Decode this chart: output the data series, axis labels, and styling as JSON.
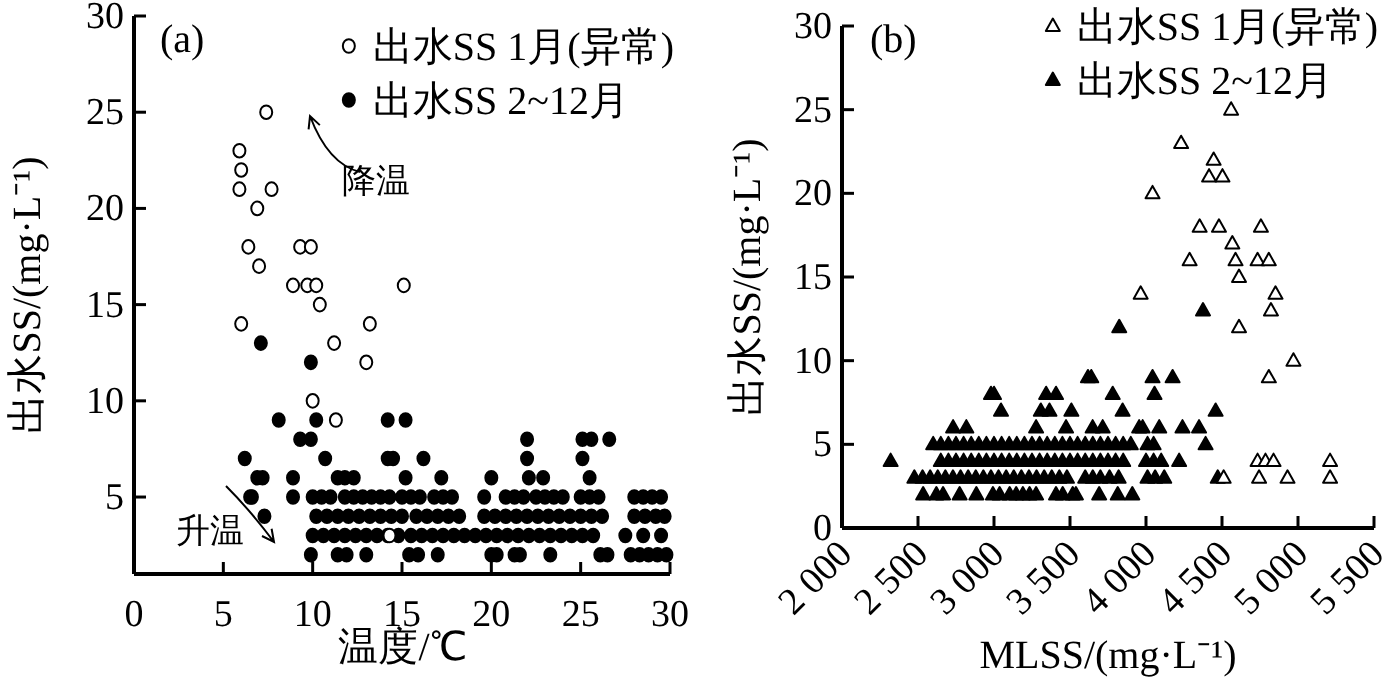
{
  "chart_data": [
    {
      "type": "scatter",
      "xlabel": "温度/℃",
      "ylabel": "出水SS/(mg·L⁻¹)",
      "xlim": [
        0,
        30
      ],
      "ylim": [
        1,
        30
      ],
      "xticks": [
        0,
        5,
        10,
        15,
        20,
        25,
        30
      ],
      "yticks": [
        5,
        10,
        15,
        20,
        25,
        30
      ],
      "legend": "top right",
      "annotations": [
        "(a)",
        "降温",
        "升温"
      ],
      "series": [
        {
          "name": "出水SS 1月(异常)",
          "color": "#ffffff",
          "marker": "circle",
          "x": [
            7.4,
            5.9,
            6.0,
            5.9,
            7.7,
            6.9,
            6.4,
            9.3,
            9.9,
            7.0,
            8.9,
            9.7,
            10.2,
            15.1,
            10.4,
            6.0,
            13.2,
            11.2,
            13.0,
            10.0,
            11.3,
            14.3
          ],
          "values": [
            25,
            23,
            22,
            21,
            21,
            20,
            18,
            18,
            18,
            17,
            16,
            16,
            16,
            16,
            15,
            14,
            14,
            13,
            12,
            10,
            9,
            3
          ]
        },
        {
          "name": "出水SS 2~12月",
          "color": "#000000",
          "marker": "circle",
          "x": [
            7.1,
            9.9,
            8.1,
            10.2,
            14.2,
            15.2,
            9.3,
            9.9,
            22.0,
            25.1,
            25.6,
            26.6,
            6.2,
            10.7,
            14.2,
            14.5,
            16.2,
            22.0,
            25.1,
            25.5,
            6.9,
            7.2,
            8.9,
            11.4,
            11.8,
            12.3,
            15.2,
            17.2,
            20.0,
            22.1,
            22.9,
            6.5,
            6.6,
            8.9,
            7.3,
            10.0,
            10.5,
            11.0,
            11.8,
            12.3,
            12.8,
            13.3,
            13.8,
            14.3,
            15.0,
            15.5,
            16.0,
            16.8,
            17.3,
            17.8,
            19.6,
            20.8,
            21.3,
            21.8,
            22.5,
            23.0,
            23.5,
            24.0,
            25.0,
            25.5,
            26.0,
            28.0,
            28.5,
            29.0,
            29.5,
            10.2,
            10.8,
            11.4,
            12.0,
            12.6,
            13.2,
            13.8,
            14.4,
            15.0,
            15.8,
            16.4,
            17.0,
            17.6,
            18.2,
            19.6,
            20.2,
            20.8,
            21.4,
            22.0,
            22.6,
            23.2,
            23.8,
            24.4,
            25.0,
            25.6,
            26.2,
            28.0,
            28.6,
            29.2,
            29.7,
            10.0,
            10.6,
            11.2,
            11.8,
            12.4,
            13.0,
            13.6,
            14.2,
            14.8,
            15.5,
            16.1,
            16.7,
            17.3,
            17.9,
            18.5,
            19.1,
            19.7,
            20.3,
            20.9,
            21.5,
            22.1,
            22.7,
            23.3,
            23.9,
            24.5,
            25.1,
            25.7,
            27.5,
            28.5,
            29.5,
            9.9,
            11.4,
            11.9,
            13.0,
            15.4,
            15.9,
            17.0,
            20.0,
            20.3,
            21.3,
            21.6,
            23.3,
            26.1,
            26.5,
            27.8,
            28.3,
            28.8,
            29.3,
            29.8
          ],
          "values": [
            13,
            12,
            9,
            9,
            9,
            9,
            8,
            8,
            8,
            8,
            8,
            8,
            7,
            7,
            7,
            7,
            7,
            7,
            7,
            6,
            6,
            6,
            6,
            6,
            6,
            6,
            6,
            6,
            6,
            6,
            6,
            5,
            5,
            5,
            4,
            5,
            5,
            5,
            5,
            5,
            5,
            5,
            5,
            5,
            5,
            5,
            5,
            5,
            5,
            5,
            5,
            5,
            5,
            5,
            5,
            5,
            5,
            5,
            5,
            5,
            5,
            5,
            5,
            5,
            5,
            4,
            4,
            4,
            4,
            4,
            4,
            4,
            4,
            4,
            4,
            4,
            4,
            4,
            4,
            4,
            4,
            4,
            4,
            4,
            4,
            4,
            4,
            4,
            4,
            4,
            4,
            4,
            4,
            4,
            4,
            3,
            3,
            3,
            3,
            3,
            3,
            3,
            3,
            3,
            3,
            3,
            3,
            3,
            3,
            3,
            3,
            3,
            3,
            3,
            3,
            3,
            3,
            3,
            3,
            3,
            3,
            3,
            3,
            3,
            3,
            2,
            2,
            2,
            2,
            2,
            2,
            2,
            2,
            2,
            2,
            2,
            2,
            2,
            2,
            2,
            2,
            2,
            2,
            2
          ]
        }
      ]
    },
    {
      "type": "scatter",
      "xlabel": "MLSS/(mg·L⁻¹)",
      "ylabel": "出水SS/(mg·L⁻¹)",
      "xlim": [
        2000,
        5500
      ],
      "ylim": [
        0,
        30
      ],
      "xticks": [
        {
          "value": 2000,
          "label": "2 000"
        },
        {
          "value": 2500,
          "label": "2 500"
        },
        {
          "value": 3000,
          "label": "3 000"
        },
        {
          "value": 3500,
          "label": "3 500"
        },
        {
          "value": 4000,
          "label": "4 000"
        },
        {
          "value": 4500,
          "label": "4 500"
        },
        {
          "value": 5000,
          "label": "5 000"
        },
        {
          "value": 5500,
          "label": "5 500"
        }
      ],
      "yticks": [
        0,
        5,
        10,
        15,
        20,
        25,
        30
      ],
      "legend": "top right",
      "annotations": [
        "(b)"
      ],
      "series": [
        {
          "name": "出水SS 1月(异常)",
          "color": "#ffffff",
          "marker": "triangle",
          "x": [
            4560,
            4231,
            4445,
            4415,
            4503,
            4043,
            4353,
            4480,
            4756,
            4568,
            4287,
            4589,
            4734,
            4808,
            4612,
            3965,
            4852,
            4822,
            4612,
            4970,
            4808,
            4734,
            4786,
            4839,
            5211,
            4511,
            4744,
            4931,
            5211
          ],
          "values": [
            25,
            23,
            22,
            21,
            21,
            20,
            18,
            18,
            18,
            17,
            16,
            16,
            16,
            16,
            15,
            14,
            14,
            13,
            12,
            10,
            9,
            4,
            4,
            4,
            4,
            3,
            3,
            3,
            3
          ]
        },
        {
          "name": "出水SS 2~12月",
          "color": "#000000",
          "marker": "triangle",
          "x": [
            3824,
            4375,
            3618,
            3640,
            4043,
            4175,
            2980,
            3000,
            3343,
            3408,
            3781,
            4056,
            3046,
            3308,
            3365,
            3509,
            3846,
            4458,
            2731,
            2818,
            3277,
            3474,
            3649,
            3715,
            3955,
            3978,
            4087,
            4240,
            4349,
            2600,
            2650,
            2700,
            2750,
            2800,
            2850,
            2900,
            2950,
            3000,
            3050,
            3100,
            3150,
            3200,
            3250,
            3300,
            3350,
            3400,
            3450,
            3500,
            3550,
            3600,
            3650,
            3700,
            3750,
            3800,
            3850,
            3900,
            4010,
            4050,
            4392,
            2320,
            2650,
            2700,
            2750,
            2800,
            2850,
            2900,
            2950,
            3000,
            3050,
            3100,
            3150,
            3200,
            3250,
            3300,
            3350,
            3400,
            3450,
            3500,
            3550,
            3600,
            3650,
            3700,
            3750,
            3800,
            3850,
            4000,
            4050,
            4100,
            4218,
            2476,
            2530,
            2580,
            2630,
            2680,
            2730,
            2780,
            2830,
            2880,
            2930,
            2980,
            3030,
            3080,
            3130,
            3180,
            3230,
            3280,
            3330,
            3380,
            3430,
            3480,
            3600,
            3650,
            3700,
            3760,
            3820,
            4010,
            4060,
            4120,
            4472,
            2534,
            2621,
            2665,
            2774,
            2884,
            2993,
            3037,
            3103,
            3146,
            3190,
            3234,
            3277,
            3408,
            3452,
            3518,
            3539,
            3692,
            3814,
            3910
          ],
          "values": [
            12,
            13,
            9,
            9,
            9,
            9,
            8,
            8,
            8,
            8,
            8,
            8,
            7,
            7,
            7,
            7,
            7,
            7,
            6,
            6,
            6,
            6,
            6,
            6,
            6,
            6,
            6,
            6,
            6,
            5,
            5,
            5,
            5,
            5,
            5,
            5,
            5,
            5,
            5,
            5,
            5,
            5,
            5,
            5,
            5,
            5,
            5,
            5,
            5,
            5,
            5,
            5,
            5,
            5,
            5,
            5,
            5,
            5,
            5,
            4,
            4,
            4,
            4,
            4,
            4,
            4,
            4,
            4,
            4,
            4,
            4,
            4,
            4,
            4,
            4,
            4,
            4,
            4,
            4,
            4,
            4,
            4,
            4,
            4,
            4,
            4,
            4,
            4,
            4,
            3,
            3,
            3,
            3,
            3,
            3,
            3,
            3,
            3,
            3,
            3,
            3,
            3,
            3,
            3,
            3,
            3,
            3,
            3,
            3,
            3,
            3,
            3,
            3,
            3,
            3,
            3,
            3,
            3,
            3,
            2,
            2,
            2,
            2,
            2,
            2,
            2,
            2,
            2,
            2,
            2,
            2,
            2,
            2,
            2,
            2,
            2,
            2,
            2
          ]
        }
      ]
    }
  ]
}
